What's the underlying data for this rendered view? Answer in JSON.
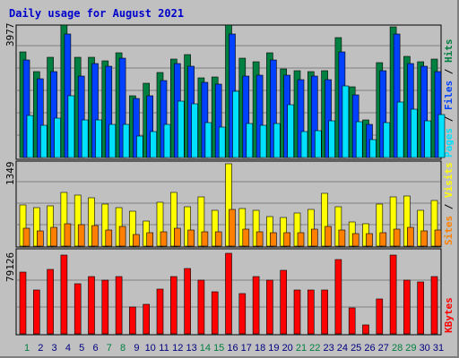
{
  "chart_data": {
    "type": "bar",
    "title": "Daily usage for August 2021",
    "categories": [
      "1",
      "2",
      "3",
      "4",
      "5",
      "6",
      "7",
      "8",
      "9",
      "10",
      "11",
      "12",
      "13",
      "14",
      "15",
      "16",
      "17",
      "18",
      "19",
      "20",
      "21",
      "22",
      "23",
      "24",
      "25",
      "26",
      "27",
      "28",
      "29",
      "30",
      "31"
    ],
    "weekend_days": [
      "1",
      "7",
      "8",
      "14",
      "15",
      "21",
      "22",
      "28",
      "29"
    ],
    "panels": [
      {
        "name": "top",
        "ymax": 3977,
        "ymax_label": "3977",
        "legend": [
          "Pages",
          "Files",
          "Hits"
        ],
        "series": [
          {
            "name": "Hits",
            "color": "#008040",
            "values": [
              3184,
              2568,
              3006,
              3977,
              3022,
              3022,
              2889,
              3148,
              1852,
              2237,
              2562,
              2960,
              3080,
              2379,
              2415,
              3966,
              2989,
              2875,
              3144,
              2652,
              2594,
              2584,
              2614,
              3597,
              2110,
              1134,
              2849,
              3935,
              3045,
              2884,
              2958
            ]
          },
          {
            "name": "Files",
            "color": "#0040ff",
            "values": [
              2935,
              2366,
              2591,
              3696,
              2439,
              2830,
              2752,
              2986,
              1777,
              1858,
              2310,
              2815,
              2751,
              2261,
              2213,
              3704,
              2450,
              2476,
              2924,
              2476,
              2339,
              2444,
              2329,
              3166,
              1883,
              1003,
              2599,
              3714,
              2810,
              2744,
              2591
            ]
          },
          {
            "name": "Pages",
            "color": "#00e0ff",
            "values": [
              1274,
              959,
              1194,
              1864,
              1135,
              1135,
              990,
              1004,
              642,
              778,
              1004,
              1688,
              1615,
              1044,
              907,
              1995,
              1012,
              967,
              1018,
              1593,
              786,
              808,
              1090,
              2156,
              1066,
              548,
              1042,
              1674,
              1452,
              1096,
              1278
            ]
          }
        ]
      },
      {
        "name": "middle",
        "ymax": 1349,
        "ymax_label": "1349",
        "legend": [
          "Sites",
          "Visits"
        ],
        "series": [
          {
            "name": "Visits",
            "color": "#ffff00",
            "values": [
              668,
              632,
              662,
              887,
              832,
              796,
              687,
              630,
              567,
              414,
              721,
              876,
              641,
              800,
              591,
              1349,
              611,
              583,
              479,
              470,
              543,
              599,
              865,
              645,
              398,
              371,
              695,
              805,
              820,
              587,
              742
            ]
          },
          {
            "name": "Sites",
            "color": "#ff8000",
            "values": [
              293,
              248,
              305,
              362,
              359,
              341,
              268,
              326,
              193,
              217,
              233,
              296,
              257,
              239,
              234,
              600,
              272,
              241,
              223,
              218,
              217,
              285,
              321,
              258,
              205,
              210,
              223,
              279,
              304,
              243,
              271
            ]
          }
        ]
      },
      {
        "name": "bottom",
        "ymax": 79126,
        "ymax_label": "79126",
        "legend": [
          "KBytes"
        ],
        "series": [
          {
            "name": "KBytes",
            "color": "#ff0000",
            "values": [
              61037,
              42937,
              63240,
              77010,
              49185,
              55992,
              52339,
              56492,
              26698,
              28831,
              44144,
              56169,
              63786,
              52339,
              41028,
              79126,
              40000,
              55992,
              52339,
              62061,
              43310,
              43310,
              42937,
              72586,
              25740,
              8660,
              34650,
              77010,
              52339,
              50839,
              56492
            ]
          }
        ]
      }
    ]
  }
}
